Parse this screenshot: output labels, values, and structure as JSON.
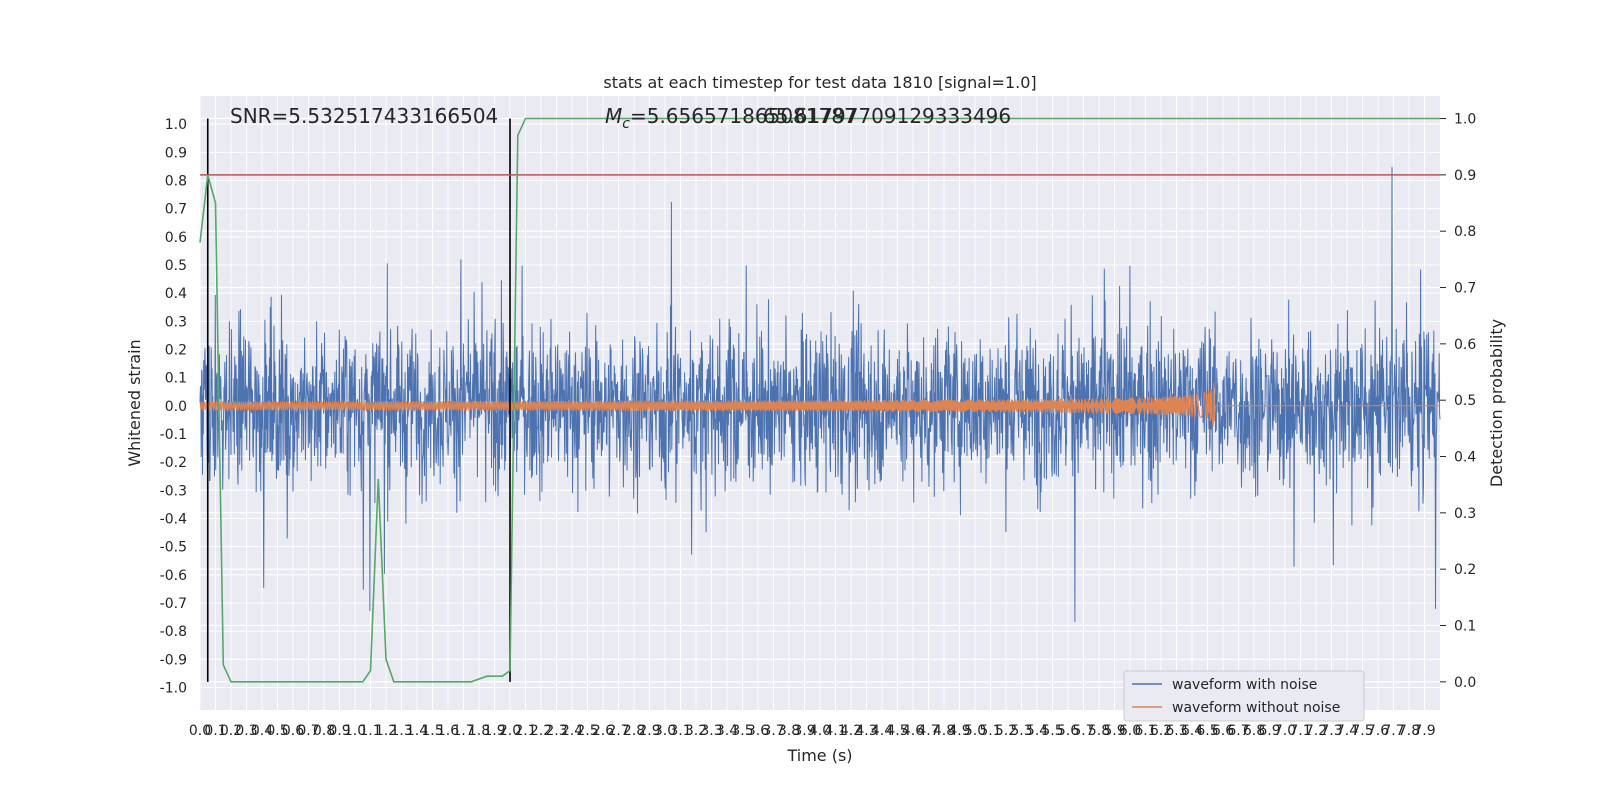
{
  "chart_data": {
    "type": "line",
    "title": "stats at each timestep for test data 1810 [signal=1.0]",
    "xlabel": "Time (s)",
    "ylabel": "Whitened strain",
    "y2label": "Detection probability",
    "xlim": [
      0.0,
      8.0
    ],
    "ylim": [
      -1.08,
      1.1
    ],
    "y2lim": [
      -0.05,
      1.04
    ],
    "x_ticks": [
      "0.0",
      "0.1",
      "0.2",
      "0.3",
      "0.4",
      "0.5",
      "0.6",
      "0.7",
      "0.8",
      "0.9",
      "1.0",
      "1.1",
      "1.2",
      "1.3",
      "1.4",
      "1.5",
      "1.6",
      "1.7",
      "1.8",
      "1.9",
      "2.0",
      "2.1",
      "2.2",
      "2.3",
      "2.4",
      "2.5",
      "2.6",
      "2.7",
      "2.8",
      "2.9",
      "3.0",
      "3.1",
      "3.2",
      "3.3",
      "3.4",
      "3.5",
      "3.6",
      "3.7",
      "3.8",
      "3.9",
      "4.0",
      "4.1",
      "4.2",
      "4.3",
      "4.4",
      "4.5",
      "4.6",
      "4.7",
      "4.8",
      "4.9",
      "5.0",
      "5.1",
      "5.2",
      "5.3",
      "5.4",
      "5.5",
      "5.6",
      "5.7",
      "5.8",
      "5.9",
      "6.0",
      "6.1",
      "6.2",
      "6.3",
      "6.4",
      "6.5",
      "6.6",
      "6.7",
      "6.8",
      "6.9",
      "7.0",
      "7.1",
      "7.2",
      "7.3",
      "7.4",
      "7.5",
      "7.6",
      "7.7",
      "7.8",
      "7.9"
    ],
    "y_ticks": [
      "1.0",
      "0.9",
      "0.8",
      "0.7",
      "0.6",
      "0.5",
      "0.4",
      "0.3",
      "0.2",
      "0.1",
      "0.0",
      "-0.1",
      "-0.2",
      "-0.3",
      "-0.4",
      "-0.5",
      "-0.6",
      "-0.7",
      "-0.8",
      "-0.9",
      "-1.0"
    ],
    "y2_ticks": [
      "1.0",
      "0.9",
      "0.8",
      "0.7",
      "0.6",
      "0.5",
      "0.4",
      "0.3",
      "0.2",
      "0.1",
      "0.0"
    ],
    "annotations": {
      "snr": "SNR=5.532517433166504",
      "mc": "M_c=5.656571865081787",
      "mc_overlap": "65.61797709129333496"
    },
    "threshold": {
      "y2": 0.9,
      "color": "#c44e52"
    },
    "vertical_markers_x": [
      0.05,
      2.0
    ],
    "legend": {
      "position": "lower right",
      "entries": [
        {
          "label": "waveform with noise",
          "color": "#4c72b0"
        },
        {
          "label": "waveform without noise",
          "color": "#dd8452"
        }
      ]
    },
    "series": [
      {
        "name": "waveform with noise",
        "color": "#4c72b0",
        "envelope_note": "noise amplitude, dense random oscillation",
        "peak_max": 1.0,
        "peak_min": -0.97
      },
      {
        "name": "waveform without noise",
        "color": "#dd8452",
        "merger_time": 6.55,
        "peak_amplitude": 0.1
      },
      {
        "name": "detection probability",
        "color": "#55a868",
        "axis": "y2",
        "x": [
          0.0,
          0.05,
          0.1,
          0.15,
          0.2,
          0.25,
          0.5,
          0.75,
          1.0,
          1.05,
          1.1,
          1.15,
          1.2,
          1.25,
          1.5,
          1.75,
          1.85,
          1.95,
          2.0,
          2.05,
          2.1,
          2.15,
          3.0,
          4.0,
          5.0,
          6.0,
          7.0,
          8.0
        ],
        "values": [
          0.78,
          0.9,
          0.85,
          0.03,
          0.0,
          0.0,
          0.0,
          0.0,
          0.0,
          0.0,
          0.02,
          0.36,
          0.04,
          0.0,
          0.0,
          0.0,
          0.01,
          0.01,
          0.02,
          0.97,
          1.0,
          1.0,
          1.0,
          1.0,
          1.0,
          1.0,
          1.0,
          1.0
        ]
      }
    ]
  }
}
